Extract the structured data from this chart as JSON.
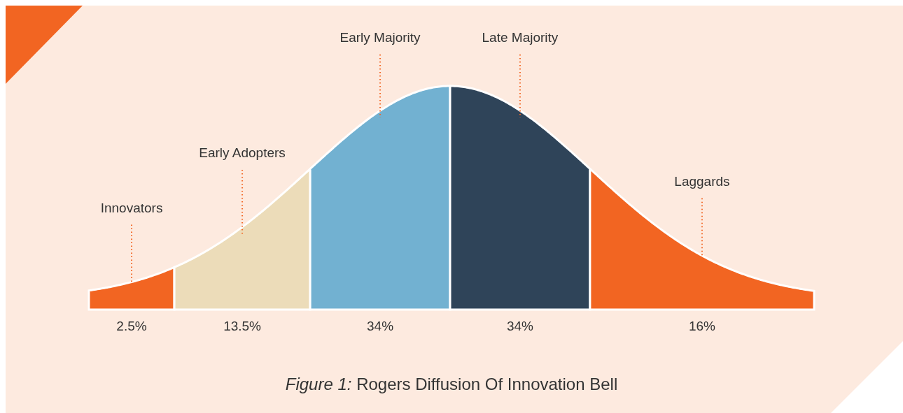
{
  "chart_data": {
    "type": "other",
    "title": "Figure 1: Rogers Diffusion Of Innovation Bell",
    "categories": [
      "Innovators",
      "Early Adopters",
      "Early Majority",
      "Late Majority",
      "Laggards"
    ],
    "values": [
      2.5,
      13.5,
      34,
      34,
      16
    ],
    "value_labels": [
      "2.5%",
      "13.5%",
      "34%",
      "34%",
      "16%"
    ],
    "colors": [
      "#f26522",
      "#ecdcb9",
      "#72b1d1",
      "#2f4459",
      "#f26522"
    ]
  }
}
